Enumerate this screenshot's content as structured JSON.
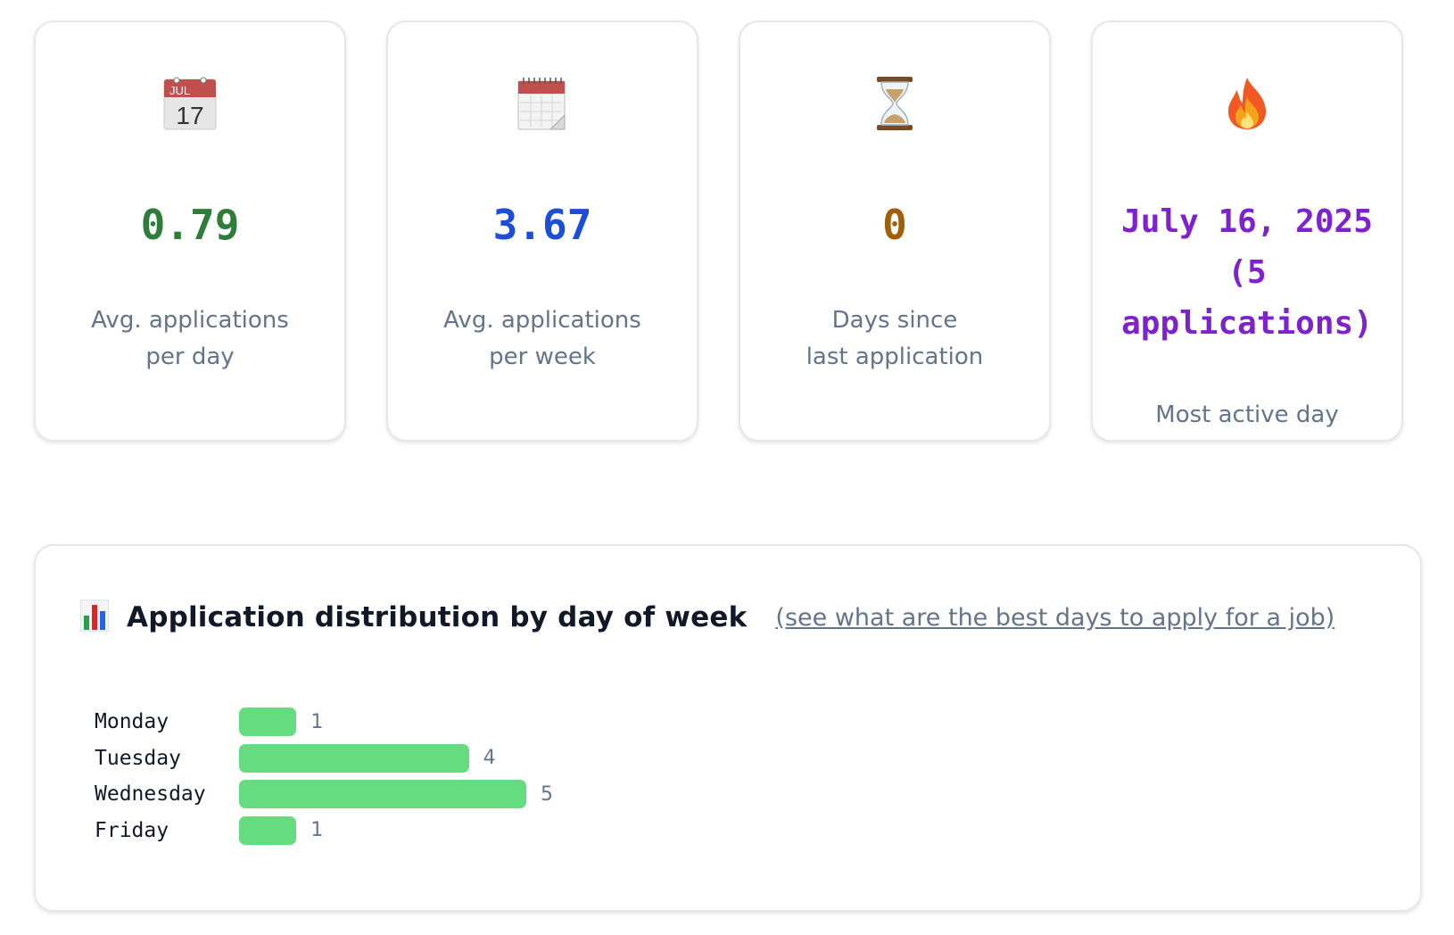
{
  "stats": [
    {
      "icon": "calendar-icon",
      "value": "0.79",
      "label": "Avg. applications\nper day",
      "color": "#2e7d3a"
    },
    {
      "icon": "spiral-calendar-icon",
      "value": "3.67",
      "label": "Avg. applications\nper week",
      "color": "#1d4ed8"
    },
    {
      "icon": "hourglass-icon",
      "value": "0",
      "label": "Days since\nlast application",
      "color": "#a0600a"
    },
    {
      "icon": "fire-icon",
      "value": "July 16, 2025 (5 applications)",
      "label": "Most active day",
      "color": "#7e22ce"
    }
  ],
  "distribution": {
    "icon": "bar-chart-icon",
    "title": "Application distribution by day of week",
    "link": "(see what are the best days to apply for a job)",
    "bar_color": "#66dc80",
    "chart_data": {
      "type": "bar",
      "orientation": "horizontal",
      "categories": [
        "Monday",
        "Tuesday",
        "Wednesday",
        "Friday"
      ],
      "values": [
        1,
        4,
        5,
        1
      ]
    }
  }
}
